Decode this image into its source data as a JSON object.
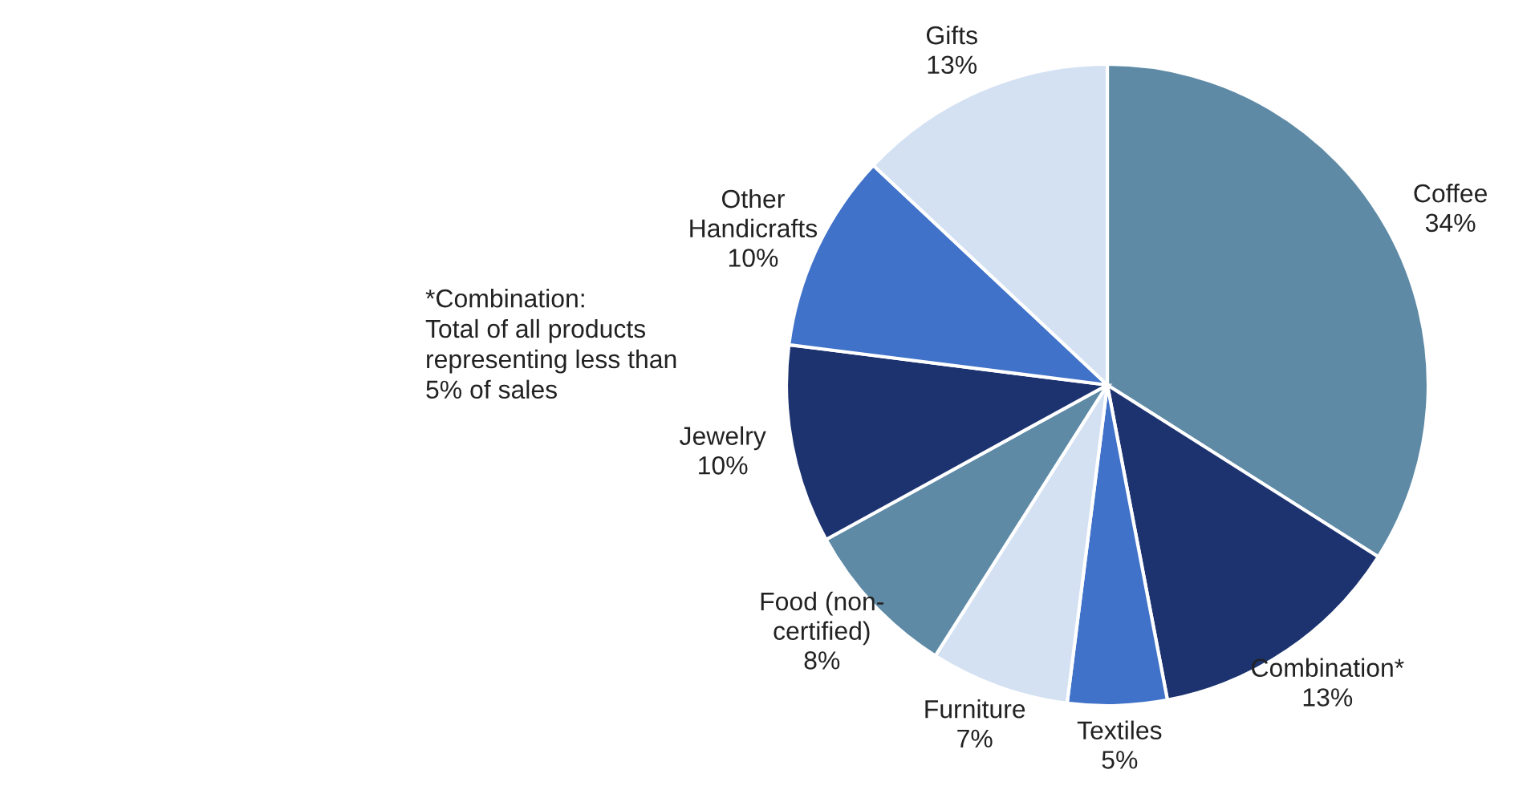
{
  "chart_data": {
    "type": "pie",
    "categories": [
      "Coffee",
      "Combination*",
      "Textiles",
      "Furniture",
      "Food (non-\ncertified)",
      "Jewelry",
      "Other\nHandicrafts",
      "Gifts"
    ],
    "values": [
      34,
      13,
      5,
      7,
      8,
      10,
      10,
      13
    ],
    "value_labels": [
      "34%",
      "13%",
      "5%",
      "7%",
      "8%",
      "10%",
      "10%",
      "13%"
    ],
    "colors": [
      "#5e8aa6",
      "#1c3370",
      "#3f72c8",
      "#d3e1f3",
      "#5e8aa6",
      "#1c3370",
      "#3f72c8",
      "#d3e1f3"
    ],
    "annotations": [
      "*Combination:\nTotal of all products\nrepresenting less than\n5% of sales"
    ],
    "legend": false
  }
}
